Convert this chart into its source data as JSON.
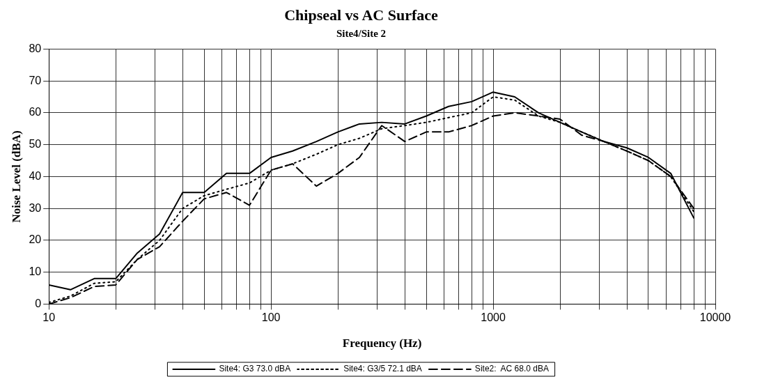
{
  "chart_data": {
    "type": "line",
    "title": "Chipseal vs AC Surface",
    "subtitle": "Site4/Site 2",
    "xlabel": "Frequency (Hz)",
    "ylabel": "Noise Level (dBA)",
    "x": [
      10,
      12.5,
      16,
      20,
      25,
      31.5,
      40,
      50,
      63,
      80,
      100,
      125,
      160,
      200,
      250,
      315,
      400,
      500,
      630,
      800,
      1000,
      1250,
      1600,
      2000,
      2500,
      3150,
      4000,
      5000,
      6300,
      8000
    ],
    "series": [
      {
        "name": "Site4: G3 73.0 dBA",
        "color": "#000000",
        "line_style": "solid",
        "values": [
          6,
          4.5,
          8,
          8,
          16,
          22,
          35,
          35,
          41,
          41,
          46,
          48,
          51,
          54,
          56.5,
          57,
          56.5,
          59,
          62,
          63.5,
          66.5,
          65,
          60,
          57,
          54,
          51,
          49,
          46,
          41,
          27
        ]
      },
      {
        "name": "Site4: G3/5 72.1 dBA",
        "color": "#000000",
        "line_style": "dotted",
        "values": [
          0.5,
          2.5,
          6.5,
          7,
          14,
          20,
          30,
          34,
          36,
          38,
          42,
          44,
          47,
          50,
          52,
          55,
          56,
          57,
          58.5,
          60,
          65,
          64,
          59,
          57,
          54,
          51,
          48,
          45,
          40,
          29
        ]
      },
      {
        "name": "Site2:  AC 68.0 dBA",
        "color": "#000000",
        "line_style": "dashed",
        "values": [
          0,
          2,
          5.5,
          6,
          14,
          18,
          26,
          33,
          35,
          31,
          42,
          44,
          37,
          41,
          46,
          56,
          51,
          54,
          54,
          56,
          59,
          60,
          59,
          58,
          53,
          51,
          48,
          45,
          40,
          30
        ]
      }
    ],
    "log": "x",
    "xlim": [
      10,
      10000
    ],
    "xticks": [
      10,
      {
        "value": 20,
        "label": null
      },
      {
        "value": 30,
        "label": null
      },
      {
        "value": 40,
        "label": null
      },
      {
        "value": 50,
        "label": null
      },
      {
        "value": 60,
        "label": null
      },
      {
        "value": 70,
        "label": null
      },
      {
        "value": 80,
        "label": null
      },
      {
        "value": 90,
        "label": null
      },
      100,
      {
        "value": 200,
        "label": null
      },
      {
        "value": 300,
        "label": null
      },
      {
        "value": 400,
        "label": null
      },
      {
        "value": 500,
        "label": null
      },
      {
        "value": 600,
        "label": null
      },
      {
        "value": 700,
        "label": null
      },
      {
        "value": 800,
        "label": null
      },
      {
        "value": 900,
        "label": null
      },
      1000,
      {
        "value": 2000,
        "label": null
      },
      {
        "value": 3000,
        "label": null
      },
      {
        "value": 4000,
        "label": null
      },
      {
        "value": 5000,
        "label": null
      },
      {
        "value": 6000,
        "label": null
      },
      {
        "value": 7000,
        "label": null
      },
      {
        "value": 8000,
        "label": null
      },
      {
        "value": 9000,
        "label": null
      },
      10000
    ],
    "ylim": [
      0,
      80
    ],
    "yticks": [
      0,
      10,
      20,
      30,
      40,
      50,
      60,
      70,
      80
    ],
    "grid": true,
    "legend": "bottom",
    "marker": "none"
  }
}
